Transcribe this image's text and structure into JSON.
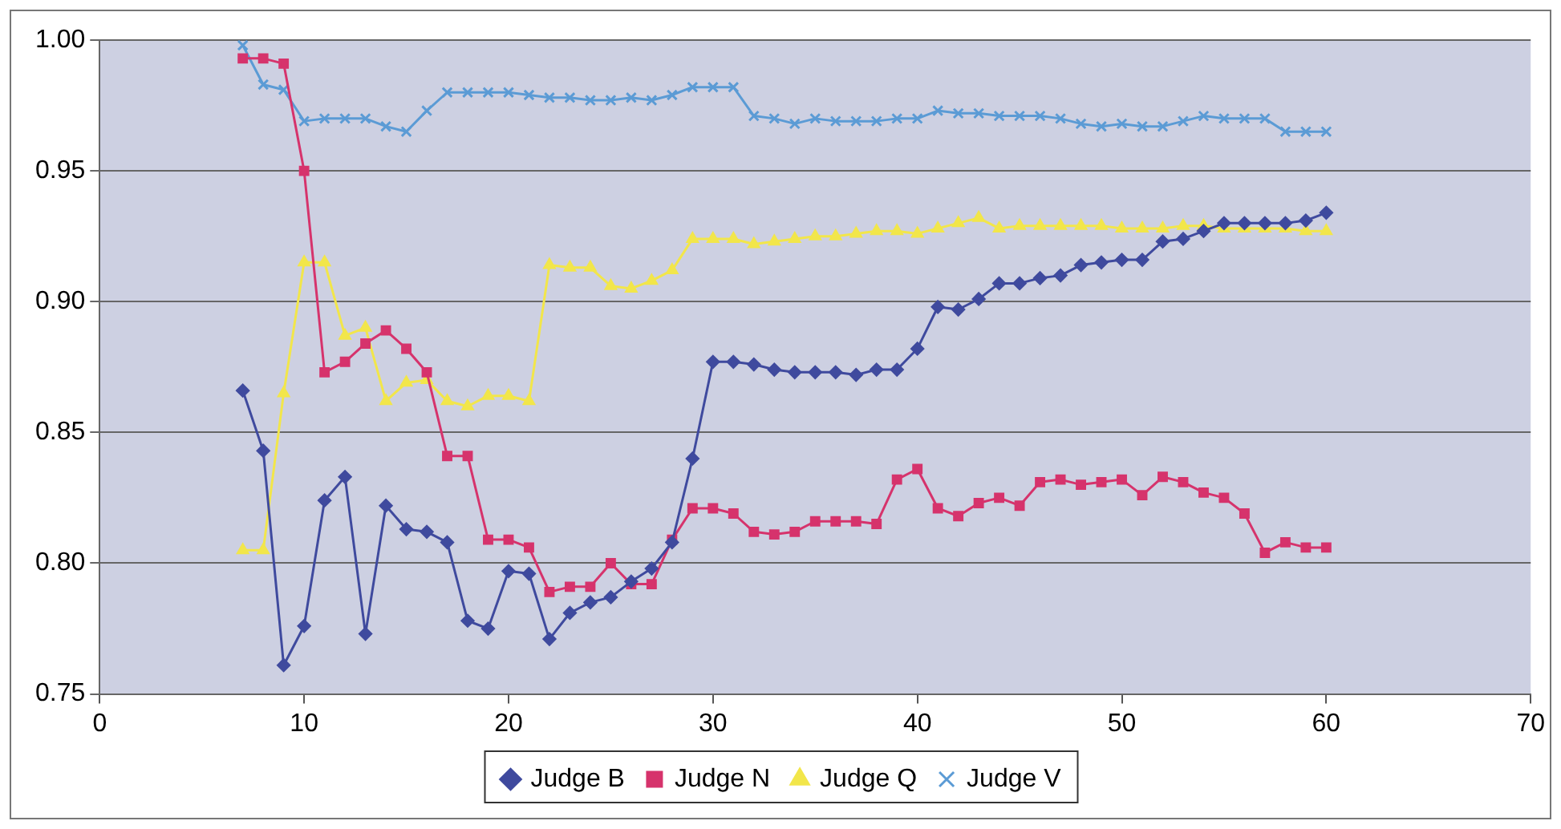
{
  "chart_data": {
    "type": "line",
    "x": [
      7,
      8,
      9,
      10,
      11,
      12,
      13,
      14,
      15,
      16,
      17,
      18,
      19,
      20,
      21,
      22,
      23,
      24,
      25,
      26,
      27,
      28,
      29,
      30,
      31,
      32,
      33,
      34,
      35,
      36,
      37,
      38,
      39,
      40,
      41,
      42,
      43,
      44,
      45,
      46,
      47,
      48,
      49,
      50,
      51,
      52,
      53,
      54,
      55,
      56,
      57,
      58,
      59,
      60
    ],
    "series": [
      {
        "name": "Judge B",
        "color": "#3f4a9e",
        "marker": "diamond",
        "values": [
          0.866,
          0.843,
          0.761,
          0.776,
          0.824,
          0.833,
          0.773,
          0.822,
          0.813,
          0.812,
          0.808,
          0.778,
          0.775,
          0.797,
          0.796,
          0.771,
          0.781,
          0.785,
          0.787,
          0.793,
          0.798,
          0.808,
          0.84,
          0.877,
          0.877,
          0.876,
          0.874,
          0.873,
          0.873,
          0.873,
          0.872,
          0.874,
          0.874,
          0.882,
          0.898,
          0.897,
          0.901,
          0.907,
          0.907,
          0.909,
          0.91,
          0.914,
          0.915,
          0.916,
          0.916,
          0.923,
          0.924,
          0.927,
          0.93,
          0.93,
          0.93,
          0.93,
          0.931,
          0.934
        ]
      },
      {
        "name": "Judge N",
        "color": "#d6336c",
        "marker": "square",
        "values": [
          0.993,
          0.993,
          0.991,
          0.95,
          0.873,
          0.877,
          0.884,
          0.889,
          0.882,
          0.873,
          0.841,
          0.841,
          0.809,
          0.809,
          0.806,
          0.789,
          0.791,
          0.791,
          0.8,
          0.792,
          0.792,
          0.809,
          0.821,
          0.821,
          0.819,
          0.812,
          0.811,
          0.812,
          0.816,
          0.816,
          0.816,
          0.815,
          0.832,
          0.836,
          0.821,
          0.818,
          0.823,
          0.825,
          0.822,
          0.831,
          0.832,
          0.83,
          0.831,
          0.832,
          0.826,
          0.833,
          0.831,
          0.827,
          0.825,
          0.819,
          0.804,
          0.808,
          0.806,
          0.806
        ]
      },
      {
        "name": "Judge Q",
        "color": "#f2e64a",
        "marker": "triangle",
        "values": [
          0.805,
          0.805,
          0.865,
          0.915,
          0.915,
          0.887,
          0.89,
          0.862,
          0.869,
          0.87,
          0.862,
          0.86,
          0.864,
          0.864,
          0.862,
          0.914,
          0.913,
          0.913,
          0.906,
          0.905,
          0.908,
          0.912,
          0.924,
          0.924,
          0.924,
          0.922,
          0.923,
          0.924,
          0.925,
          0.925,
          0.926,
          0.927,
          0.927,
          0.926,
          0.928,
          0.93,
          0.932,
          0.928,
          0.929,
          0.929,
          0.929,
          0.929,
          0.929,
          0.928,
          0.928,
          0.928,
          0.929,
          0.929,
          0.928,
          0.928,
          0.928,
          0.928,
          0.927,
          0.927
        ]
      },
      {
        "name": "Judge V",
        "color": "#5b9bd5",
        "marker": "cross",
        "values": [
          0.998,
          0.983,
          0.981,
          0.969,
          0.97,
          0.97,
          0.97,
          0.967,
          0.965,
          0.973,
          0.98,
          0.98,
          0.98,
          0.98,
          0.979,
          0.978,
          0.978,
          0.977,
          0.977,
          0.978,
          0.977,
          0.979,
          0.982,
          0.982,
          0.982,
          0.971,
          0.97,
          0.968,
          0.97,
          0.969,
          0.969,
          0.969,
          0.97,
          0.97,
          0.973,
          0.972,
          0.972,
          0.971,
          0.971,
          0.971,
          0.97,
          0.968,
          0.967,
          0.968,
          0.967,
          0.967,
          0.969,
          0.971,
          0.97,
          0.97,
          0.97,
          0.965,
          0.965,
          0.965
        ]
      }
    ],
    "xlim": [
      0,
      70
    ],
    "xticks": [
      0,
      10,
      20,
      30,
      40,
      50,
      60,
      70
    ],
    "ylim": [
      0.75,
      1
    ],
    "yticks": [
      {
        "value": 0.75,
        "label": "0.75"
      },
      {
        "value": 0.8,
        "label": "0.80"
      },
      {
        "value": 0.85,
        "label": "0.85"
      },
      {
        "value": 0.9,
        "label": "0.90"
      },
      {
        "value": 0.95,
        "label": "0.95"
      },
      {
        "value": 1,
        "label": "1.00"
      }
    ],
    "grid": "y",
    "legend": "bottom",
    "line_style": "solid"
  }
}
